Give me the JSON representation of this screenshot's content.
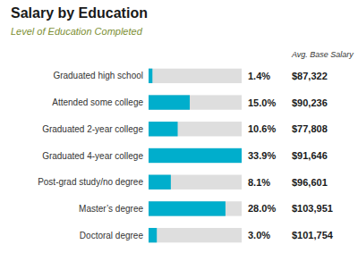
{
  "chart_data": {
    "type": "bar",
    "orientation": "horizontal",
    "title": "Salary by Education",
    "subtitle": "Level of Education Completed",
    "categories": [
      "Graduated high school",
      "Attended some college",
      "Graduated 2-year college",
      "Graduated 4-year college",
      "Post-grad study/no degree",
      "Master’s degree",
      "Doctoral degree"
    ],
    "values": [
      1.4,
      15.0,
      10.6,
      33.9,
      8.1,
      28.0,
      3.0
    ],
    "value_labels": [
      "1.4%",
      "15.0%",
      "10.6%",
      "33.9%",
      "8.1%",
      "28.0%",
      "3.0%"
    ],
    "salary_header": "Avg. Base Salary",
    "salaries": [
      87322,
      90236,
      77808,
      91646,
      96601,
      103951,
      101754
    ],
    "salary_labels": [
      "$87,322",
      "$90,236",
      "$77,808",
      "$91,646",
      "$96,601",
      "$103,951",
      "$101,754"
    ],
    "color": "#00AECC",
    "xlim": [
      0,
      33.9
    ],
    "grid": false,
    "tick_labels": false,
    "data_labels": true
  }
}
